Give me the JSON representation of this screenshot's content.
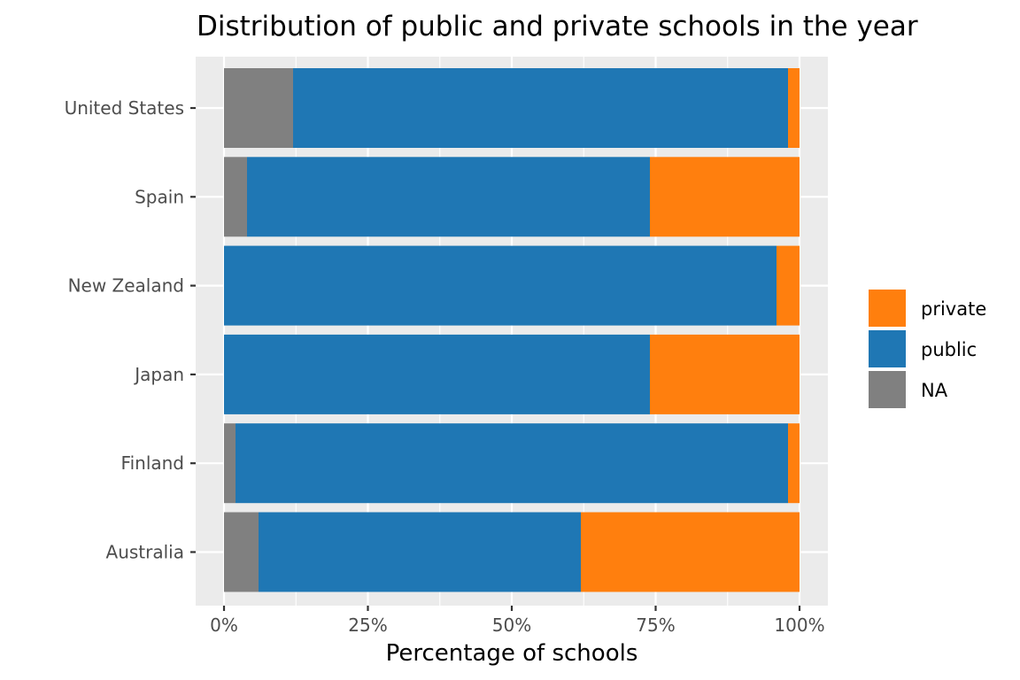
{
  "chart_data": {
    "type": "bar",
    "orientation": "horizontal",
    "stacked": true,
    "title": "Distribution of public and private schools in the year",
    "xlabel": "Percentage of schools",
    "ylabel": "",
    "xlim": [
      0,
      1
    ],
    "x_ticks": [
      {
        "value": 0,
        "label": "0%"
      },
      {
        "value": 0.25,
        "label": "25%"
      },
      {
        "value": 0.5,
        "label": "50%"
      },
      {
        "value": 0.75,
        "label": "75%"
      },
      {
        "value": 1,
        "label": "100%"
      }
    ],
    "categories": [
      "United States",
      "Spain",
      "New Zealand",
      "Japan",
      "Finland",
      "Australia"
    ],
    "series": [
      {
        "name": "NA",
        "color": "#808080",
        "values": [
          0.12,
          0.04,
          0.0,
          0.0,
          0.02,
          0.06
        ]
      },
      {
        "name": "public",
        "color": "#1f77b4",
        "values": [
          0.86,
          0.7,
          0.96,
          0.74,
          0.96,
          0.56
        ]
      },
      {
        "name": "private",
        "color": "#ff7f0e",
        "values": [
          0.02,
          0.26,
          0.04,
          0.26,
          0.02,
          0.38
        ]
      }
    ],
    "legend": {
      "position": "right",
      "entries": [
        "private",
        "public",
        "NA"
      ]
    },
    "grid": true,
    "panel_background": "#ebebeb",
    "grid_color": "#ffffff"
  }
}
